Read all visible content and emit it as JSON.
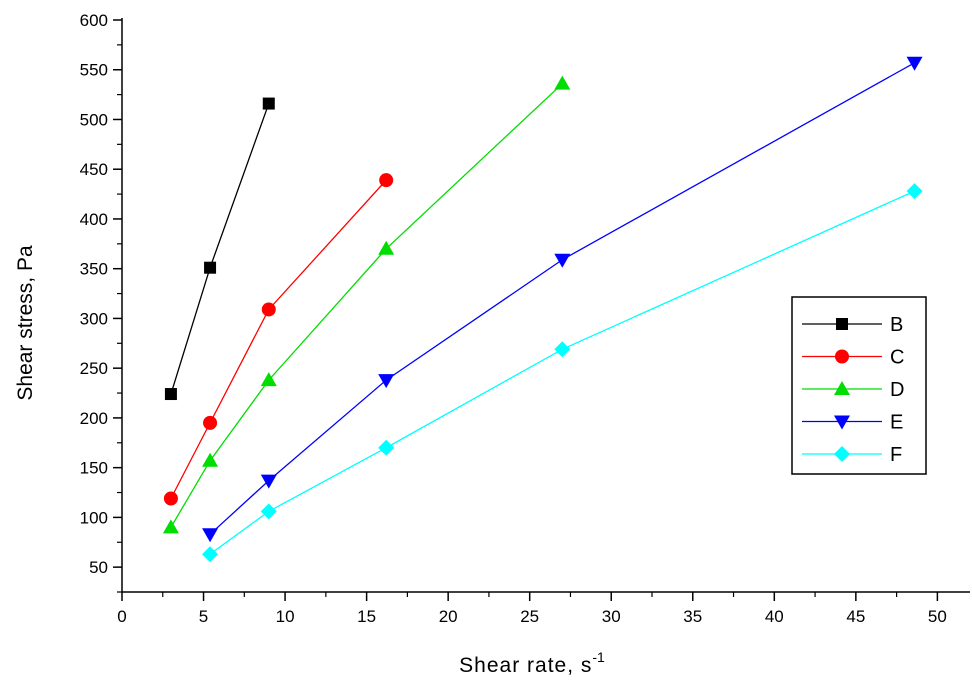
{
  "chart_data": {
    "type": "line",
    "xlabel": "Shear rate, s",
    "xlabel_superscript": "-1",
    "ylabel": "Shear stress, Pa",
    "xlim": [
      0,
      52
    ],
    "ylim": [
      25,
      600
    ],
    "x_ticks": [
      "0",
      "5",
      "10",
      "15",
      "20",
      "25",
      "30",
      "35",
      "40",
      "45",
      "50"
    ],
    "y_ticks": [
      "50",
      "100",
      "150",
      "200",
      "250",
      "300",
      "350",
      "400",
      "450",
      "500",
      "550",
      "600"
    ],
    "grid": false,
    "legend_position": "right",
    "series": [
      {
        "name": "B",
        "color": "#000000",
        "marker": "square",
        "x": [
          3.0,
          5.4,
          9.0
        ],
        "y": [
          224,
          351,
          516
        ]
      },
      {
        "name": "C",
        "color": "#ff0000",
        "marker": "circle",
        "x": [
          3.0,
          5.4,
          9.0,
          16.2
        ],
        "y": [
          119,
          195,
          309,
          439
        ]
      },
      {
        "name": "D",
        "color": "#00dd00",
        "marker": "triangle-up",
        "x": [
          3.0,
          5.4,
          9.0,
          16.2,
          27.0
        ],
        "y": [
          90,
          157,
          238,
          370,
          536
        ]
      },
      {
        "name": "E",
        "color": "#0000ff",
        "marker": "triangle-down",
        "x": [
          5.4,
          9.0,
          16.2,
          27.0,
          48.6
        ],
        "y": [
          83,
          137,
          238,
          359,
          557
        ]
      },
      {
        "name": "F",
        "color": "#00ffff",
        "marker": "diamond",
        "x": [
          5.4,
          9.0,
          16.2,
          27.0,
          48.6
        ],
        "y": [
          63,
          106,
          170,
          269,
          428
        ]
      }
    ]
  }
}
